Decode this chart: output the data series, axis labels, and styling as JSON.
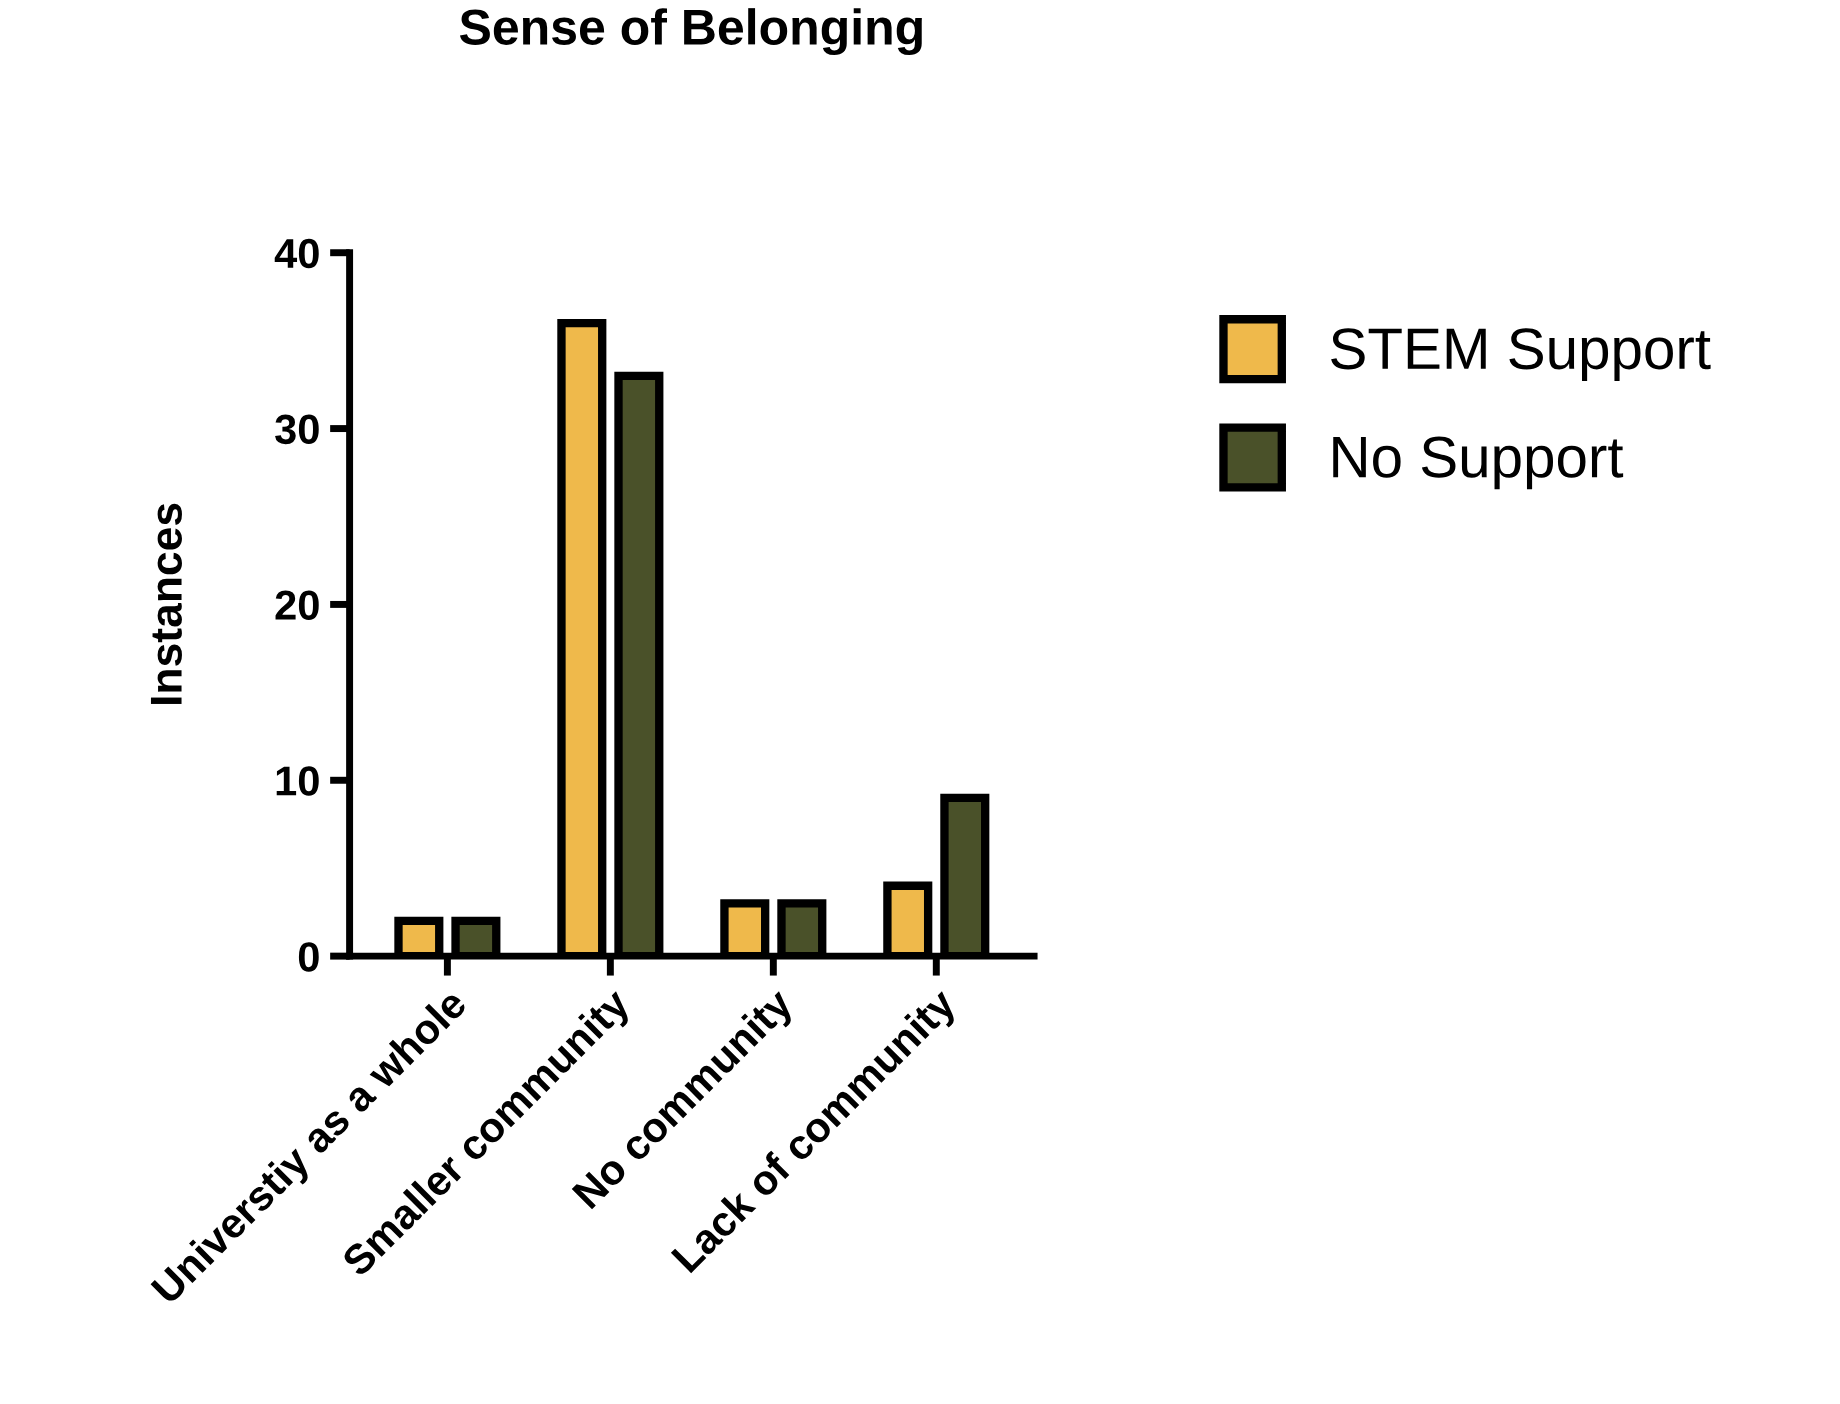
{
  "chart_data": {
    "type": "bar",
    "title": "Sense of Belonging",
    "ylabel": "Instances",
    "categories": [
      "Universtiy as a whole",
      "Smaller community",
      "No community",
      "Lack of community"
    ],
    "series": [
      {
        "name": "STEM Support",
        "color": "#efb94b",
        "values": [
          2,
          36,
          3,
          4
        ]
      },
      {
        "name": "No Support",
        "color": "#4a5129",
        "values": [
          2,
          33,
          3,
          9
        ]
      }
    ],
    "ylim": [
      0,
      40
    ],
    "yticks": [
      0,
      10,
      20,
      30,
      40
    ],
    "grid": false,
    "legend": "right"
  }
}
